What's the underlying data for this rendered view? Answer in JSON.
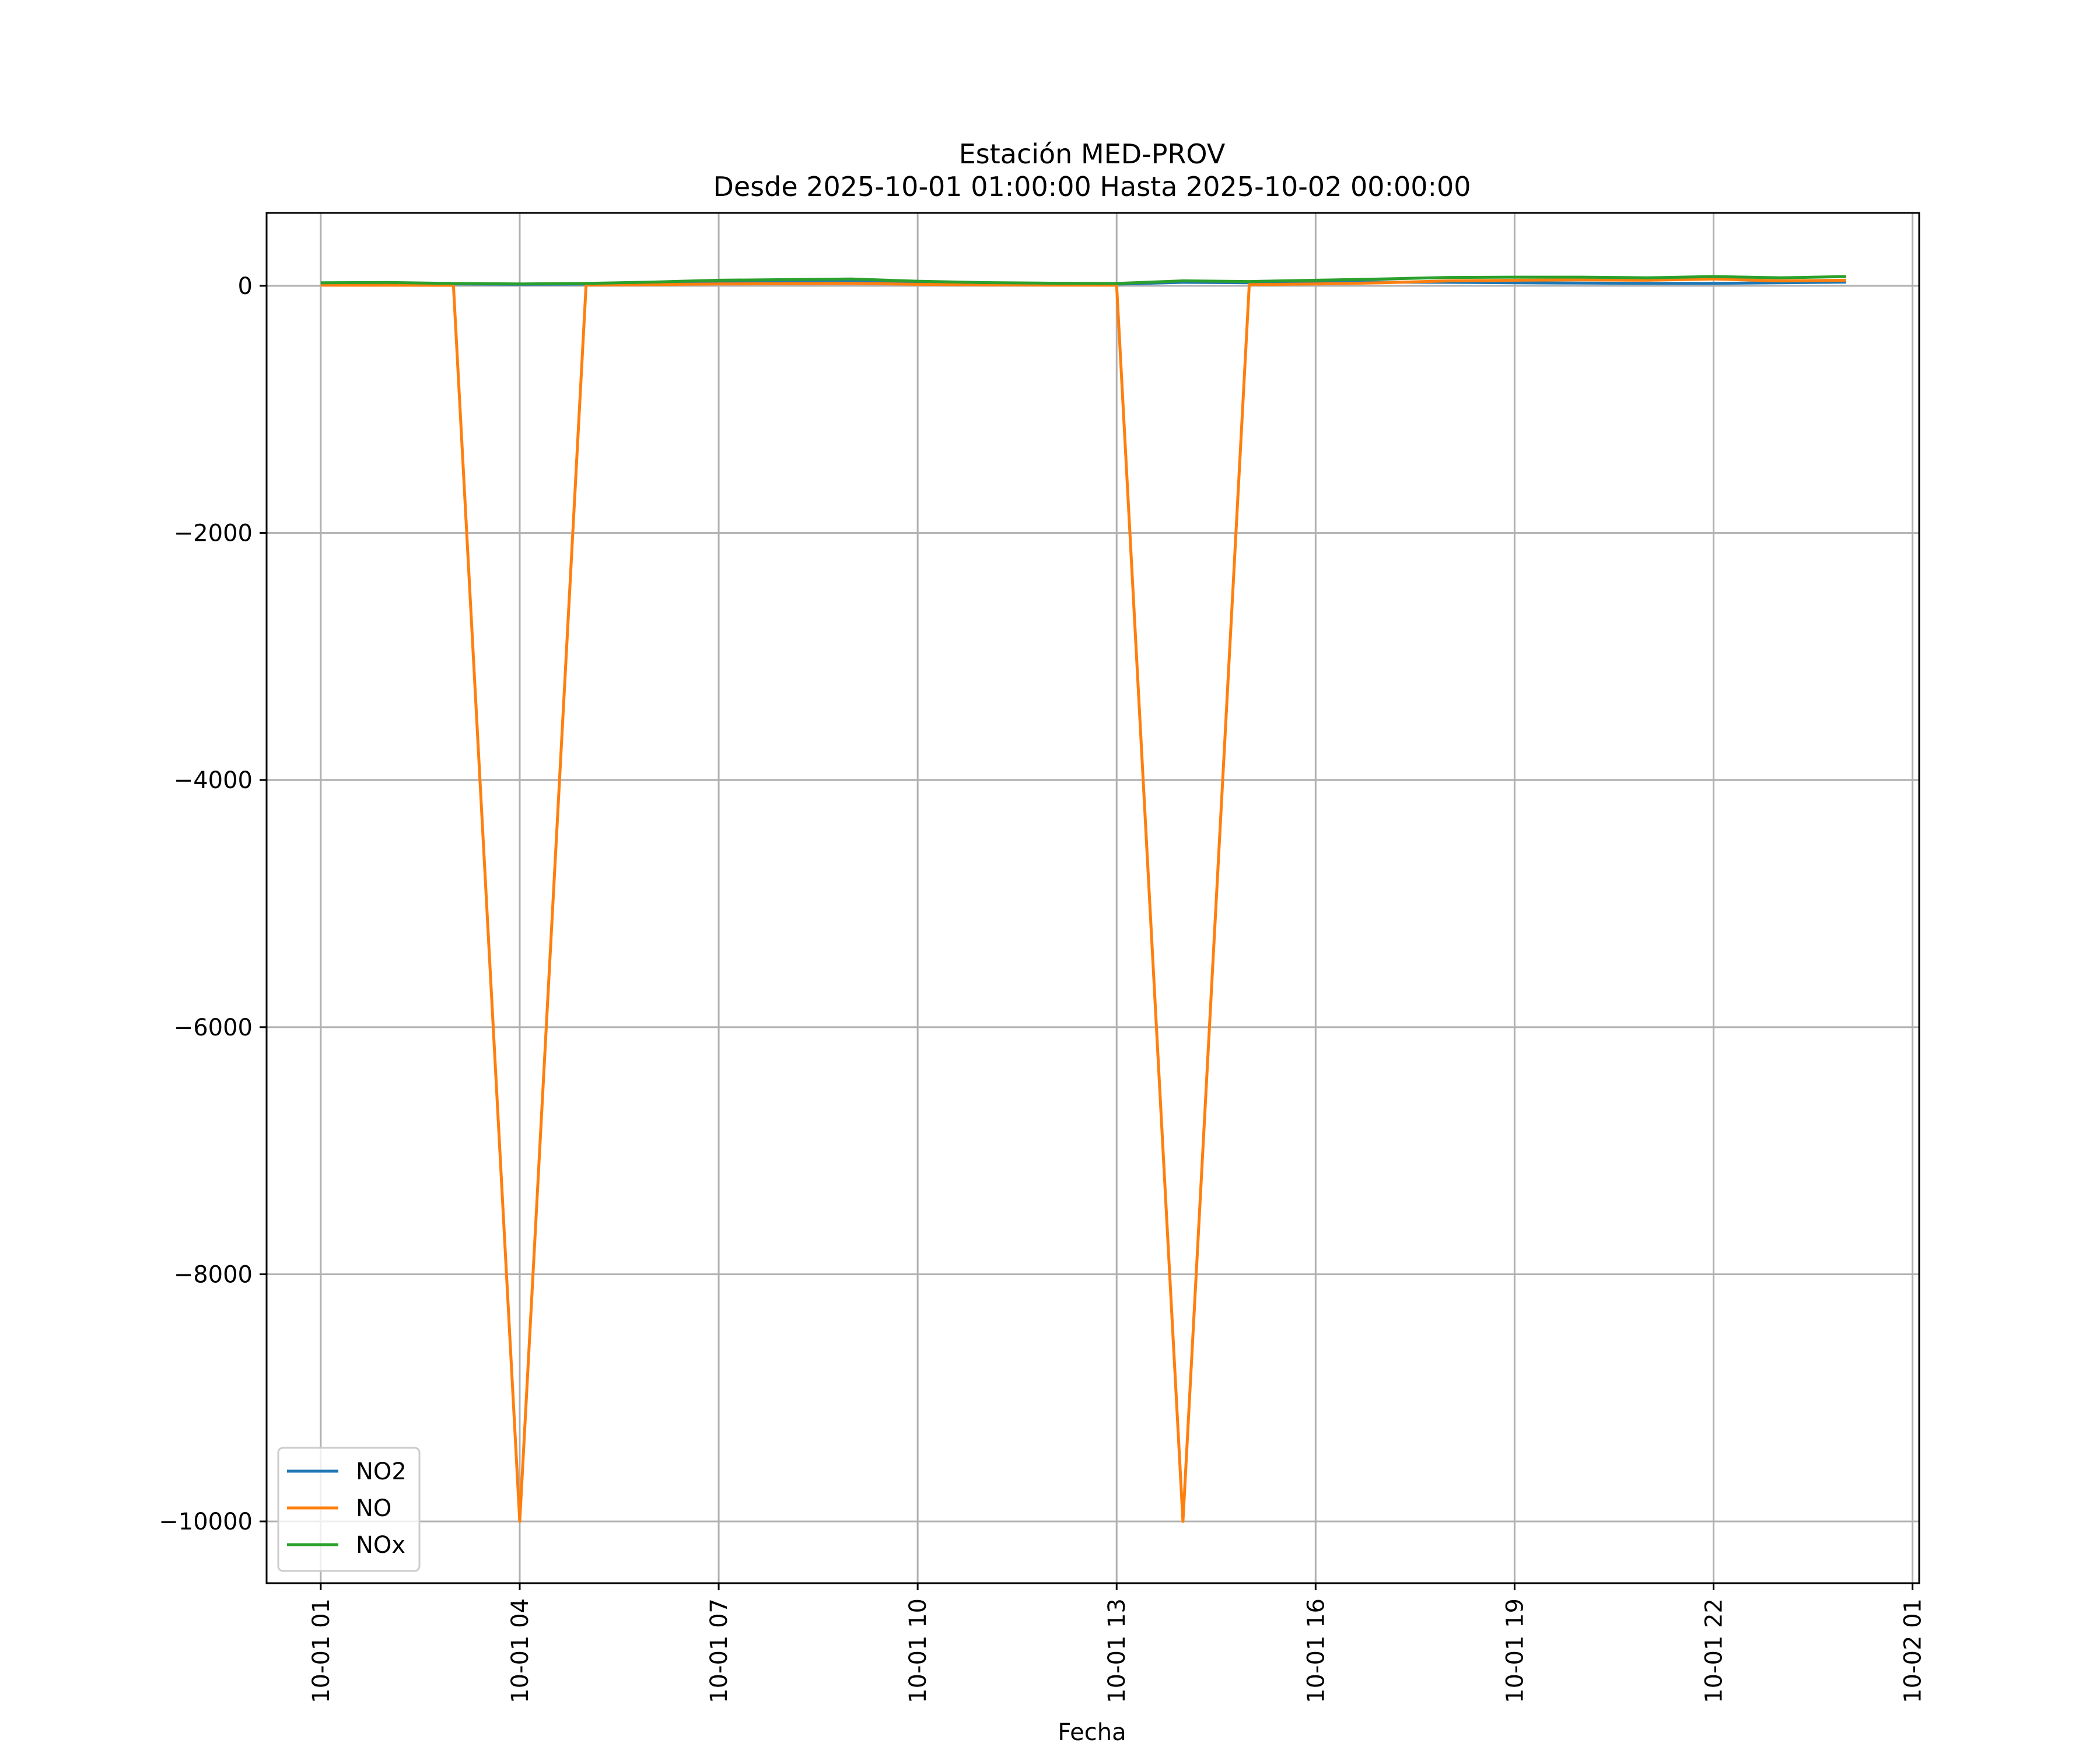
{
  "chart_data": {
    "type": "line",
    "title": "Estación MED-PROV",
    "subtitle": "Desde 2025-10-01 01:00:00 Hasta 2025-10-02 00:00:00",
    "xlabel": "Fecha",
    "ylabel": "",
    "x": [
      "2025-10-01 01:00",
      "2025-10-01 02:00",
      "2025-10-01 03:00",
      "2025-10-01 04:00",
      "2025-10-01 05:00",
      "2025-10-01 06:00",
      "2025-10-01 07:00",
      "2025-10-01 08:00",
      "2025-10-01 09:00",
      "2025-10-01 10:00",
      "2025-10-01 11:00",
      "2025-10-01 12:00",
      "2025-10-01 13:00",
      "2025-10-01 14:00",
      "2025-10-01 15:00",
      "2025-10-01 16:00",
      "2025-10-01 17:00",
      "2025-10-01 18:00",
      "2025-10-01 19:00",
      "2025-10-01 20:00",
      "2025-10-01 21:00",
      "2025-10-01 22:00",
      "2025-10-01 23:00",
      "2025-10-02 00:00"
    ],
    "xlim": [
      "2025-10-01 00:11",
      "2025-10-02 01:06"
    ],
    "ylim": [
      -10500,
      590
    ],
    "x_ticks": [
      "10-01 01",
      "10-01 04",
      "10-01 07",
      "10-01 10",
      "10-01 13",
      "10-01 16",
      "10-01 19",
      "10-01 22",
      "10-02 01"
    ],
    "x_tick_values": [
      "2025-10-01 01:00",
      "2025-10-01 04:00",
      "2025-10-01 07:00",
      "2025-10-01 10:00",
      "2025-10-01 13:00",
      "2025-10-01 16:00",
      "2025-10-01 19:00",
      "2025-10-01 22:00",
      "2025-10-02 01:00"
    ],
    "y_ticks": [
      0,
      -2000,
      -4000,
      -6000,
      -8000,
      -10000
    ],
    "y_tick_labels": [
      "0",
      "−2000",
      "−4000",
      "−6000",
      "−8000",
      "−10000"
    ],
    "grid": true,
    "legend_position": "lower-left",
    "series": [
      {
        "name": "NO2",
        "color": "#1f77b4",
        "values": [
          20,
          22,
          15,
          12,
          14,
          20,
          30,
          32,
          35,
          25,
          18,
          15,
          14,
          28,
          25,
          30,
          30,
          28,
          25,
          22,
          20,
          20,
          25,
          30
        ]
      },
      {
        "name": "NO",
        "color": "#ff7f0e",
        "values": [
          5,
          5,
          4,
          -10000,
          5,
          10,
          15,
          18,
          20,
          12,
          8,
          6,
          5,
          -10000,
          10,
          15,
          25,
          40,
          45,
          48,
          45,
          55,
          40,
          45
        ]
      },
      {
        "name": "NOx",
        "color": "#2ca02c",
        "values": [
          25,
          27,
          19,
          15,
          19,
          30,
          45,
          50,
          55,
          37,
          26,
          21,
          19,
          40,
          35,
          45,
          55,
          68,
          70,
          70,
          65,
          75,
          65,
          75
        ]
      }
    ]
  }
}
